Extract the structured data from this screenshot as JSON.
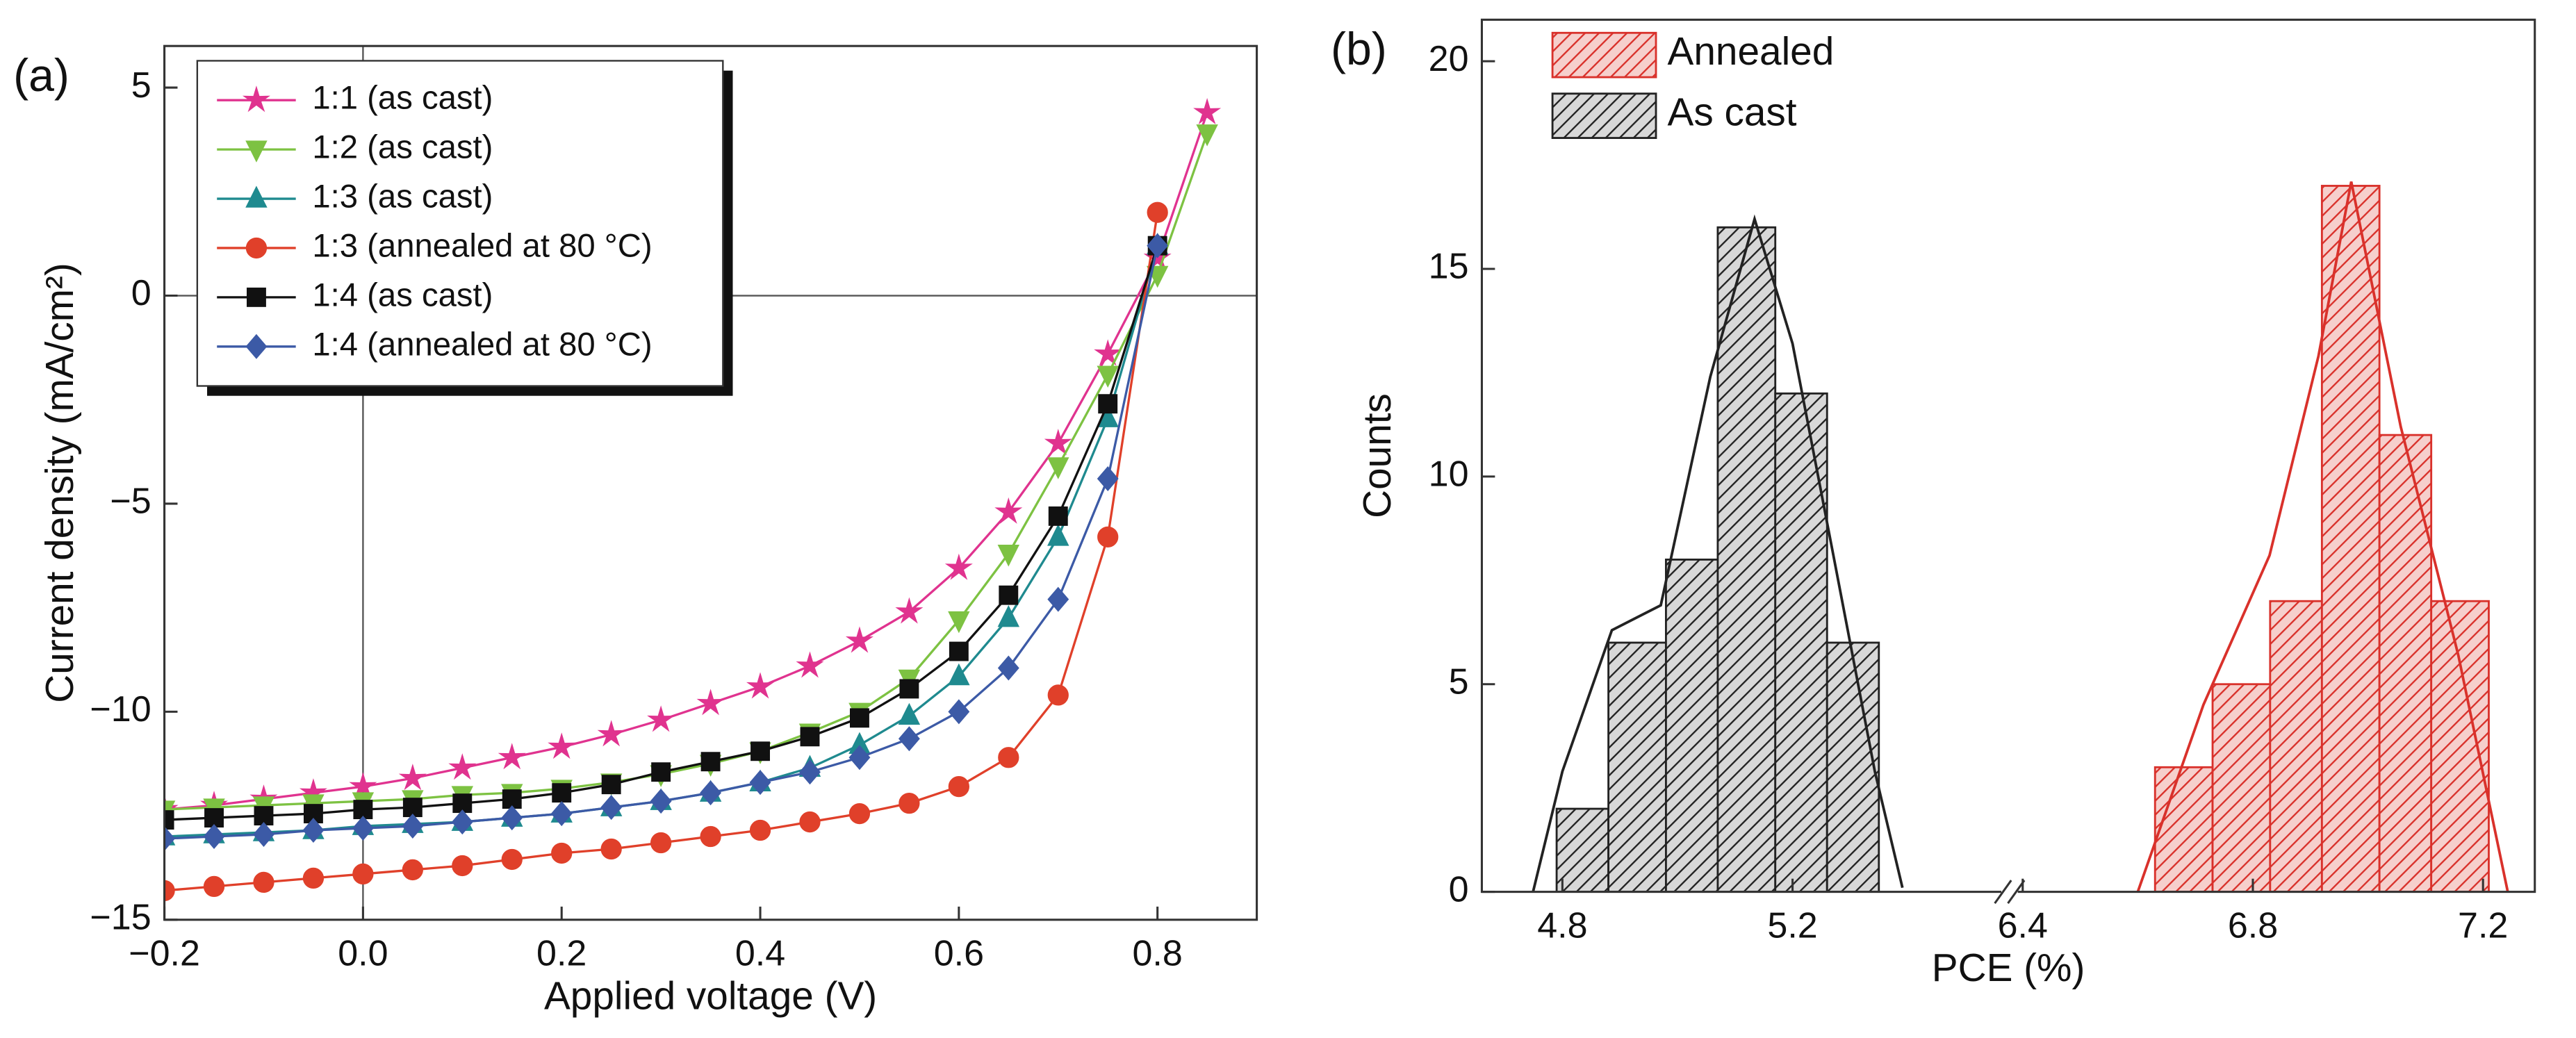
{
  "chart_data": [
    {
      "type": "line",
      "title": "(a)",
      "x_label": "Applied voltage (V)",
      "y_label": "Current density (mA/cm²)",
      "x": [
        -0.2,
        -0.15,
        -0.1,
        -0.05,
        0,
        0.05,
        0.1,
        0.15,
        0.2,
        0.25,
        0.3,
        0.35,
        0.4,
        0.45,
        0.5,
        0.55,
        0.6,
        0.65,
        0.7,
        0.75,
        0.8,
        0.85
      ],
      "series": [
        {
          "name": "1:1 (as cast)",
          "color": "#e0338f",
          "marker": "star",
          "values": [
            -12.35,
            -12.25,
            -12.1,
            -11.95,
            -11.8,
            -11.6,
            -11.35,
            -11.1,
            -10.85,
            -10.55,
            -10.2,
            -9.8,
            -9.4,
            -8.9,
            -8.3,
            -7.6,
            -6.55,
            -5.2,
            -3.55,
            -1.4,
            0.9,
            4.4
          ]
        },
        {
          "name": "1:2 (as cast)",
          "color": "#7dc242",
          "marker": "triangle-down",
          "values": [
            -12.35,
            -12.3,
            -12.25,
            -12.2,
            -12.15,
            -12.1,
            -12.0,
            -11.95,
            -11.85,
            -11.7,
            -11.5,
            -11.25,
            -10.95,
            -10.5,
            -10.0,
            -9.2,
            -7.8,
            -6.2,
            -4.1,
            -1.9,
            0.5,
            3.9
          ]
        },
        {
          "name": "1:3 (as cast)",
          "color": "#1f8a8f",
          "marker": "triangle-up",
          "values": [
            -13.0,
            -12.95,
            -12.9,
            -12.85,
            -12.75,
            -12.7,
            -12.65,
            -12.55,
            -12.45,
            -12.3,
            -12.15,
            -11.95,
            -11.7,
            -11.35,
            -10.8,
            -10.1,
            -9.15,
            -7.75,
            -5.8,
            -2.95,
            1.2,
            null
          ]
        },
        {
          "name": "1:3 (annealed at 80 °C)",
          "color": "#e0402a",
          "marker": "circle",
          "values": [
            -14.3,
            -14.2,
            -14.1,
            -14.0,
            -13.9,
            -13.8,
            -13.7,
            -13.55,
            -13.4,
            -13.3,
            -13.15,
            -13.0,
            -12.85,
            -12.65,
            -12.45,
            -12.2,
            -11.8,
            -11.1,
            -9.6,
            -5.8,
            2.0,
            null
          ]
        },
        {
          "name": "1:4 (as cast)",
          "color": "#111111",
          "marker": "square",
          "values": [
            -12.6,
            -12.55,
            -12.5,
            -12.45,
            -12.35,
            -12.3,
            -12.2,
            -12.1,
            -11.95,
            -11.75,
            -11.45,
            -11.2,
            -10.95,
            -10.6,
            -10.15,
            -9.45,
            -8.55,
            -7.2,
            -5.3,
            -2.6,
            1.2,
            null
          ]
        },
        {
          "name": "1:4 (annealed at 80 °C)",
          "color": "#3c5aa6",
          "marker": "diamond",
          "values": [
            -13.05,
            -13.0,
            -12.95,
            -12.85,
            -12.8,
            -12.75,
            -12.65,
            -12.55,
            -12.45,
            -12.3,
            -12.15,
            -11.95,
            -11.7,
            -11.45,
            -11.1,
            -10.65,
            -10.0,
            -8.95,
            -7.3,
            -4.4,
            1.2,
            null
          ]
        }
      ],
      "xlim": [
        -0.2,
        0.9
      ],
      "ylim": [
        -15,
        6
      ],
      "xticks": [
        {
          "value": -0.2,
          "label": "−0.2"
        },
        {
          "value": 0,
          "label": "0.0"
        },
        0.2,
        0.4,
        0.6,
        0.8
      ],
      "yticks": [
        {
          "value": -15,
          "label": "−15"
        },
        {
          "value": -10,
          "label": "−10"
        },
        {
          "value": -5,
          "label": "−5"
        },
        0,
        5
      ],
      "legend": "upper left"
    },
    {
      "type": "histogram",
      "title": "(b)",
      "x_label": "PCE (%)",
      "y_label": "Counts",
      "series": [
        {
          "name": "Annealed",
          "color": "#d9312b",
          "bins": [
            6.63,
            6.73,
            6.83,
            6.92,
            7.02,
            7.11,
            7.21
          ],
          "values": [
            3,
            5,
            7,
            17,
            11,
            7
          ],
          "fit": {
            "x": [
              6.6,
              6.714,
              6.829,
              6.914,
              6.971,
              7.057,
              7.157,
              7.243
            ],
            "values": [
              0,
              4.5,
              8.1,
              12.9,
              17.1,
              11.2,
              5.7,
              0
            ]
          }
        },
        {
          "name": "As cast",
          "color": "#222222",
          "bins": [
            4.79,
            4.88,
            4.98,
            5.07,
            5.17,
            5.26,
            5.35
          ],
          "values": [
            2,
            6,
            8,
            16,
            12,
            6
          ],
          "fit": {
            "x": [
              4.749,
              4.8,
              4.886,
              4.971,
              5.057,
              5.134,
              5.2,
              5.271,
              5.343,
              5.391
            ],
            "values": [
              0,
              2.9,
              6.3,
              6.9,
              12.4,
              16.2,
              13.2,
              8.1,
              2.9,
              0.1
            ]
          }
        }
      ],
      "xlim": [
        4.66,
        7.29
      ],
      "ylim": [
        0,
        21
      ],
      "xbreak": [
        5.6,
        6.4
      ],
      "xticks": [
        4.8,
        5.2,
        6.4,
        6.8,
        7.2
      ],
      "yticks": [
        0,
        5,
        10,
        15,
        20
      ],
      "legend": "upper left"
    }
  ]
}
